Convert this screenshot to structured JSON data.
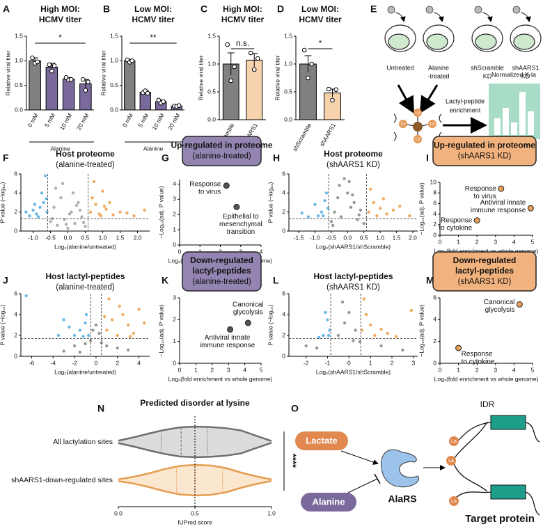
{
  "chart_data": [
    {
      "type": "bar",
      "panel": "A",
      "title": [
        "High MOI:",
        "HCMV titer"
      ],
      "categories": [
        "0 mM",
        "5 mM",
        "10 mM",
        "20 mM"
      ],
      "values": [
        1.0,
        0.87,
        0.63,
        0.53
      ],
      "errors": [
        0.06,
        0.08,
        0.03,
        0.09
      ],
      "points": [
        [
          1.06,
          0.95,
          0.98
        ],
        [
          0.92,
          0.79,
          0.9
        ],
        [
          0.66,
          0.61,
          0.62
        ],
        [
          0.62,
          0.4,
          0.57
        ]
      ],
      "colors": [
        "#808080",
        "#7a6a9c",
        "#7a6a9c",
        "#7a6a9c"
      ],
      "ylabel": "Relative viral titer",
      "xlabel": "Alanine",
      "ylim": [
        0,
        1.5
      ],
      "yticks": [
        {
          "value": 0,
          "label": "0.0"
        },
        0.5,
        {
          "value": 1,
          "label": "1.0"
        },
        1.5
      ],
      "significance": "*"
    },
    {
      "type": "bar",
      "panel": "B",
      "title": [
        "Low MOI:",
        "HCMV titer"
      ],
      "categories": [
        "0 mM",
        "5 mM",
        "10 mM",
        "20 mM"
      ],
      "values": [
        1.0,
        0.36,
        0.17,
        0.08
      ],
      "errors": [
        0.03,
        0.03,
        0.03,
        0.01
      ],
      "points": [
        [
          1.02,
          0.97,
          1.0
        ],
        [
          0.35,
          0.39,
          0.34
        ],
        [
          0.2,
          0.14,
          0.17
        ],
        [
          0.08,
          0.07,
          0.09
        ]
      ],
      "colors": [
        "#808080",
        "#7a6a9c",
        "#7a6a9c",
        "#7a6a9c"
      ],
      "ylabel": "Relative viral titer",
      "xlabel": "Alanine",
      "ylim": [
        0,
        1.5
      ],
      "yticks": [
        {
          "value": 0,
          "label": "0.0"
        },
        0.5,
        {
          "value": 1,
          "label": "1.0"
        },
        1.5
      ],
      "significance": "**"
    },
    {
      "type": "bar",
      "panel": "C",
      "title": [
        "High MOI:",
        "HCMV titer"
      ],
      "categories": [
        "shScramble",
        "shAARS1"
      ],
      "values": [
        1.0,
        1.07
      ],
      "errors": [
        0.2,
        0.12
      ],
      "points": [
        [
          1.35,
          0.7,
          0.95
        ],
        [
          1.2,
          0.9,
          1.1
        ]
      ],
      "colors": [
        "#808080",
        "#f6d2ad"
      ],
      "ylabel": "Relative viral titer",
      "ylim": [
        0,
        1.5
      ],
      "yticks": [
        {
          "value": 0,
          "label": "0.0"
        },
        0.5,
        {
          "value": 1,
          "label": "1.0"
        },
        1.5
      ],
      "significance": "n.s."
    },
    {
      "type": "bar",
      "panel": "D",
      "title": [
        "Low MOI:",
        "HCMV titer"
      ],
      "categories": [
        "shScramble",
        "shAARS1"
      ],
      "values": [
        1.0,
        0.48
      ],
      "errors": [
        0.15,
        0.07
      ],
      "points": [
        [
          1.25,
          0.75,
          1.0
        ],
        [
          0.55,
          0.35,
          0.54
        ]
      ],
      "colors": [
        "#808080",
        "#f6d2ad"
      ],
      "ylabel": "Relative viral titer",
      "ylim": [
        0,
        1.5
      ],
      "yticks": [
        {
          "value": 0,
          "label": "0.0"
        },
        0.5,
        {
          "value": 1,
          "label": "1.0"
        },
        1.5
      ],
      "significance": "*"
    },
    {
      "type": "scatter",
      "panel": "F",
      "title": [
        "Host proteome"
      ],
      "subtitle": "(alanine-treated)",
      "xlabel": "Log₂(alanine/untreated)",
      "ylabel": "P value (−log₁₀)",
      "xlim": [
        -1.35,
        2.35
      ],
      "ylim": [
        0,
        6
      ],
      "xticks": [
        {
          "value": -1,
          "label": "-1.0"
        },
        -0.5,
        {
          "value": 0,
          "label": "0.0"
        },
        0.5,
        {
          "value": 1,
          "label": "1.0"
        },
        1.5,
        {
          "value": 2,
          "label": "2.0"
        }
      ],
      "yticks": [
        0,
        2,
        4,
        6
      ],
      "vlines": [
        -0.58,
        0.58
      ],
      "hline": 1.3,
      "series": [
        {
          "color": "#a6a6a6",
          "x": [
            -0.5,
            -0.4,
            -0.3,
            -0.2,
            -0.1,
            0,
            0.1,
            0.2,
            0.3,
            0.4,
            0.5,
            -0.35,
            -0.15,
            0.05,
            0.25,
            0.45,
            -0.45,
            0.15,
            -0.05,
            0.35
          ],
          "values": [
            1.0,
            2.5,
            0.6,
            3.5,
            1.2,
            0.3,
            2.0,
            0.8,
            3.0,
            1.5,
            0.5,
            4.5,
            5.0,
            1.8,
            2.7,
            0.9,
            1.3,
            4.0,
            0.7,
            2.2
          ]
        },
        {
          "color": "#5bb0e3",
          "x": [
            -0.6,
            -0.65,
            -0.7,
            -0.8,
            -0.9,
            -1.0,
            -1.1,
            -1.2,
            -0.75,
            -0.85,
            -0.62,
            -0.95
          ],
          "values": [
            2.0,
            5.8,
            3.0,
            2.5,
            1.8,
            2.2,
            1.6,
            2.0,
            4.0,
            1.5,
            3.4,
            2.8
          ]
        },
        {
          "color": "#eaa24d",
          "x": [
            0.65,
            0.7,
            0.8,
            0.9,
            1.0,
            1.1,
            1.2,
            1.3,
            1.5,
            1.7,
            1.9,
            2.2,
            0.75,
            0.95,
            1.05
          ],
          "values": [
            2.0,
            3.5,
            2.8,
            1.8,
            4.2,
            2.3,
            3.0,
            1.7,
            2.0,
            1.9,
            1.6,
            2.2,
            5.2,
            1.6,
            2.6
          ]
        }
      ]
    },
    {
      "type": "scatter",
      "panel": "G",
      "title": [
        "Up-regulated in proteome"
      ],
      "subtitle": "(alanine-treated)",
      "header_color": "#9384b2",
      "xlabel": "Log₂(fold enrichment vs whole genome)",
      "ylabel": "−Log₁₀(adj. P value)",
      "xlim": [
        0,
        4
      ],
      "ylim": [
        0,
        4.3
      ],
      "xticks": [
        0,
        1,
        2,
        3,
        4
      ],
      "yticks": [
        0,
        1,
        2,
        3,
        4
      ],
      "color": "#555555",
      "x": [
        2.3,
        2.8
      ],
      "values": [
        3.9,
        2.5
      ],
      "labels": [
        [
          "Response",
          "to virus"
        ],
        [
          "Epithelial to",
          "mesenchymal",
          "transition"
        ]
      ]
    },
    {
      "type": "scatter",
      "panel": "H",
      "title": [
        "Host proteome"
      ],
      "subtitle": "(shAARS1 KD)",
      "xlabel": "Log₂(shAARS1/shScramble)",
      "ylabel": "P value (−log₁₀)",
      "xlim": [
        -1.8,
        2.15
      ],
      "ylim": [
        0,
        6
      ],
      "xticks": [
        -1.5,
        {
          "value": -1,
          "label": "-1.0"
        },
        -0.5,
        {
          "value": 0,
          "label": "0.0"
        },
        0.5,
        {
          "value": 1,
          "label": "1.0"
        },
        1.5,
        {
          "value": 2,
          "label": "2.0"
        }
      ],
      "yticks": [
        0,
        2,
        4,
        6
      ],
      "vlines": [
        -0.58,
        0.58
      ],
      "hline": 1.3,
      "series": [
        {
          "color": "#8c8c8c",
          "x": [
            -0.5,
            -0.4,
            -0.3,
            -0.2,
            -0.1,
            0,
            0.1,
            0.2,
            0.3,
            0.4,
            0.5,
            -0.25,
            0.05,
            0.35,
            -0.45,
            0.15
          ],
          "values": [
            1.0,
            2.0,
            3.5,
            1.5,
            5.5,
            4.0,
            2.5,
            3.0,
            1.2,
            2.2,
            0.8,
            4.8,
            5.2,
            1.7,
            0.6,
            3.8
          ]
        },
        {
          "color": "#5bb0e3",
          "x": [
            -0.6,
            -0.7,
            -0.8,
            -0.9,
            -1.0,
            -1.2,
            -1.4,
            -0.65,
            -0.75
          ],
          "values": [
            2.4,
            3.2,
            2.0,
            1.6,
            2.8,
            1.5,
            1.9,
            4.0,
            1.6
          ]
        },
        {
          "color": "#eaa24d",
          "x": [
            0.65,
            0.8,
            1.0,
            1.2,
            1.4,
            1.6,
            1.9,
            0.7,
            0.9,
            1.1
          ],
          "values": [
            2.0,
            3.0,
            2.4,
            1.8,
            2.2,
            2.6,
            1.6,
            4.4,
            1.6,
            3.4
          ]
        }
      ]
    },
    {
      "type": "scatter",
      "panel": "I",
      "title": [
        "Up-regulated in proteome"
      ],
      "subtitle": "(shAARS1 KD)",
      "header_color": "#f2b27e",
      "xlabel": "Log₂(fold enrichment vs whole genome)",
      "ylabel": "−Log₁₀(adj. P value)",
      "xlim": [
        0,
        5
      ],
      "ylim": [
        0,
        10
      ],
      "xticks": [
        0,
        1,
        2,
        3,
        4,
        5
      ],
      "yticks": [
        0,
        2,
        4,
        6,
        8,
        10
      ],
      "color": "#e8a05a",
      "x": [
        3.3,
        4.9,
        2.0
      ],
      "values": [
        8.8,
        5.1,
        2.8
      ],
      "labels": [
        [
          "Response",
          "to virus"
        ],
        [
          "Antiviral innate",
          "immune response"
        ],
        [
          "Response",
          "to cytokine"
        ]
      ]
    },
    {
      "type": "scatter",
      "panel": "J",
      "title": [
        "Host lactyl-peptides"
      ],
      "subtitle": "(alanine-treated)",
      "xlabel": "Log₂(alanine/untreated)",
      "ylabel": "P value (−log₁₀)",
      "xlim": [
        -7,
        5
      ],
      "ylim": [
        0,
        6
      ],
      "xticks": [
        -6,
        -4,
        -2,
        0,
        2,
        4
      ],
      "yticks": [
        0,
        2,
        4,
        6
      ],
      "vlines": [
        -0.5,
        0.5
      ],
      "hline": 1.7,
      "series": [
        {
          "color": "#8c8c8c",
          "x": [
            -3,
            -2,
            -1,
            -0.3,
            0,
            0.3,
            1,
            2,
            3,
            -1.5,
            0.5,
            -0.5
          ],
          "values": [
            0.5,
            1.0,
            1.2,
            2.5,
            3.0,
            2.2,
            1.0,
            0.8,
            0.6,
            0.4,
            1.3,
            1.5
          ]
        },
        {
          "color": "#5bb0e3",
          "x": [
            -0.7,
            -1,
            -1.5,
            -2,
            -2.5,
            -3,
            -3.5,
            -1.2,
            -0.9,
            -6.5
          ],
          "values": [
            2.0,
            3.2,
            2.5,
            2.0,
            2.8,
            3.5,
            2.0,
            1.9,
            4.0,
            5.8
          ]
        },
        {
          "color": "#eaa24d",
          "x": [
            1,
            1.5,
            2,
            2.5,
            3,
            3.5,
            4,
            4.5,
            1.2,
            2.2,
            3.2,
            0.8
          ],
          "values": [
            2.5,
            3.5,
            2.0,
            4.0,
            3.0,
            2.2,
            4.5,
            3.2,
            5.5,
            4.8,
            1.9,
            3.8
          ]
        }
      ]
    },
    {
      "type": "scatter",
      "panel": "K",
      "title": [
        "Down-regulated",
        "lactyl-peptides"
      ],
      "subtitle": "(alanine-treated)",
      "header_color": "#9384b2",
      "xlabel": "Log₂(fold enrichment vs whole genome)",
      "ylabel": "−Log₁₀(adj. P value)",
      "xlim": [
        0,
        5
      ],
      "ylim": [
        0,
        3
      ],
      "xticks": [
        0,
        1,
        2,
        3,
        4,
        5
      ],
      "yticks": [
        0,
        1,
        2,
        3
      ],
      "color": "#555555",
      "x": [
        4.2,
        3.1
      ],
      "values": [
        1.85,
        1.55
      ],
      "labels": [
        [
          "Canonical",
          "glycolysis"
        ],
        [
          "Antiviral innate",
          "immune response"
        ]
      ]
    },
    {
      "type": "scatter",
      "panel": "L",
      "title": [
        "Host lactyl-peptides"
      ],
      "subtitle": "(shAARS1 KD)",
      "xlabel": "Log₂(shAARS1/shScramble)",
      "ylabel": "P value (−log₁₀)",
      "xlim": [
        -2.8,
        3.2
      ],
      "ylim": [
        0,
        6
      ],
      "xticks": [
        -2,
        -1,
        0,
        1,
        2,
        3
      ],
      "yticks": [
        0,
        2,
        4,
        6
      ],
      "vlines": [
        -0.85,
        0.55
      ],
      "hline": 1.7,
      "series": [
        {
          "color": "#8c8c8c",
          "x": [
            -2,
            -1.5,
            -0.5,
            -0.2,
            0,
            0.3,
            0.5,
            1.5,
            2.5,
            -0.3,
            0.2
          ],
          "values": [
            1,
            0.8,
            2,
            3.2,
            4.2,
            2.5,
            1.4,
            1.0,
            0.6,
            5.2,
            1.5
          ]
        },
        {
          "color": "#5bb0e3",
          "x": [
            -0.9,
            -1,
            -1.2,
            -1.4,
            -1.1,
            -0.95
          ],
          "values": [
            2.5,
            3.5,
            2.0,
            1.8,
            4.2,
            2.0
          ]
        },
        {
          "color": "#eaa24d",
          "x": [
            0.6,
            0.8,
            1,
            1.2,
            1.5,
            1.8,
            2.2,
            2.9,
            0.7
          ],
          "values": [
            2.5,
            4,
            3,
            2,
            2.6,
            2.2,
            1.9,
            4.4,
            5.5
          ]
        }
      ]
    },
    {
      "type": "scatter",
      "panel": "M",
      "title": [
        "Down-regulated",
        "lactyl-peptides"
      ],
      "subtitle": "(shAARS1 KD)",
      "header_color": "#f2b27e",
      "xlabel": "Log₂(fold enrichment vs whole genome)",
      "ylabel": "−Log₁₀(adj. P value)",
      "xlim": [
        0,
        5
      ],
      "ylim": [
        0,
        6
      ],
      "xticks": [
        0,
        1,
        2,
        3,
        4,
        5
      ],
      "yticks": [
        0,
        2,
        4,
        6
      ],
      "color": "#e8a05a",
      "x": [
        4.3,
        1.0
      ],
      "values": [
        5.4,
        1.4
      ],
      "labels": [
        [
          "Canonical",
          "glycolysis"
        ],
        [
          "Response",
          "to cytokine"
        ]
      ]
    },
    {
      "type": "violin",
      "panel": "N",
      "title": "Predicted disorder at lysine",
      "xlabel": "IUPred score",
      "xlim": [
        0,
        1
      ],
      "xticks": [
        {
          "value": 0,
          "label": "0.0"
        },
        0.5,
        {
          "value": 1,
          "label": "1.0"
        }
      ],
      "refline": 0.5,
      "significance": "****",
      "density_x": [
        0,
        0.1,
        0.2,
        0.3,
        0.4,
        0.5,
        0.6,
        0.7,
        0.8,
        0.9,
        1.0
      ],
      "series": [
        {
          "name": "All lactylation sites",
          "color": "#6f6f6f",
          "fill": "#dcdcdc",
          "density": [
            0.08,
            0.3,
            0.55,
            0.78,
            0.95,
            1.0,
            0.97,
            0.9,
            0.75,
            0.4,
            0.06
          ],
          "q1": 0.28,
          "median": 0.41,
          "q3": 0.58
        },
        {
          "name": "shAARS1-down-regulated sites",
          "color": "#e59c4f",
          "fill": "#fbe6cf",
          "density": [
            0.06,
            0.22,
            0.45,
            0.72,
            0.93,
            1.0,
            0.96,
            0.8,
            0.5,
            0.25,
            0.05
          ],
          "q1": 0.38,
          "median": 0.5,
          "q3": 0.68
        }
      ]
    }
  ],
  "diagrams": {
    "E": {
      "panel": "E",
      "conditions": [
        [
          "Untreated"
        ],
        [
          "Alanine",
          "-treated"
        ],
        [
          "shScramble",
          "KD"
        ],
        [
          "shAARS1",
          "KD"
        ]
      ],
      "method": [
        "Lactyl-peptide",
        "enrichment"
      ],
      "result": "Normalized K-la",
      "mod": "La"
    },
    "O": {
      "panel": "O",
      "lactate": "Lactate",
      "alanine": "Alanine",
      "enzyme": "AlaRS",
      "idr": "IDR",
      "mod": "La",
      "target": "Target protein"
    }
  }
}
